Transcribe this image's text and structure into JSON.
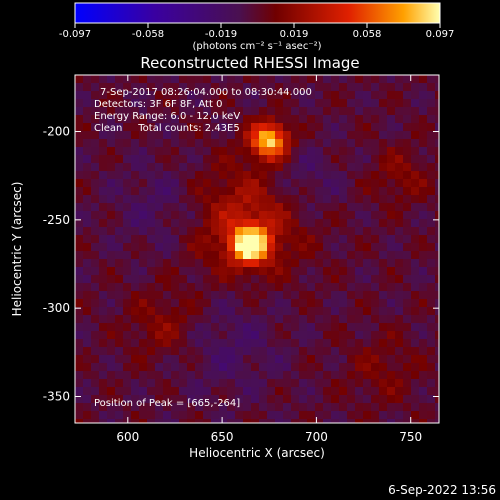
{
  "chart_data": {
    "type": "heatmap",
    "title": "Reconstructed RHESSI Image",
    "xlabel": "Heliocentric X (arcsec)",
    "ylabel": "Heliocentric Y (arcsec)",
    "xlim": [
      572,
      765
    ],
    "ylim": [
      -365,
      -168
    ],
    "x_ticks": [
      600,
      650,
      700,
      750
    ],
    "y_ticks": [
      -200,
      -250,
      -300,
      -350
    ],
    "colorbar": {
      "ticks": [
        "-0.097",
        "-0.058",
        "-0.019",
        "0.019",
        "0.058",
        "0.097"
      ],
      "unit_label": "(photons cm⁻² s⁻¹ asec⁻²)",
      "range": [
        -0.097,
        0.097
      ]
    },
    "annotations": {
      "time": "7-Sep-2017 08:26:04.000 to 08:30:44.000",
      "detectors": "Detectors: 3F 6F 8F, Att 0",
      "energy": "Energy Range: 6.0 - 12.0 keV",
      "clean": "Clean     Total counts: 2.43E5",
      "peak": "Position of Peak = [665,-264]"
    },
    "sources": [
      {
        "x": 665,
        "y": -264,
        "peak": 0.097
      },
      {
        "x": 675,
        "y": -205,
        "peak": 0.088
      }
    ],
    "footer_date": "6-Sep-2022 13:56"
  }
}
